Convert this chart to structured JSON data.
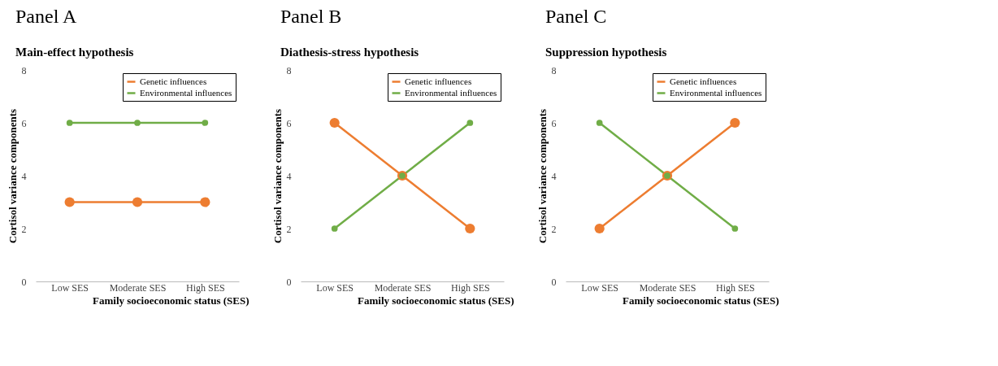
{
  "chart_data": [
    {
      "type": "line",
      "title": "Panel A",
      "subtitle": "Main-effect hypothesis",
      "xlabel": "Family socioeconomic status (SES)",
      "ylabel": "Cortisol variance components",
      "categories": [
        "Low SES",
        "Moderate SES",
        "High SES"
      ],
      "series": [
        {
          "name": "Genetic influences",
          "color": "#ed7d31",
          "values": [
            3,
            3,
            3
          ]
        },
        {
          "name": "Environmental influences",
          "color": "#70ad47",
          "values": [
            6,
            6,
            6
          ]
        }
      ],
      "ylim": [
        0,
        8
      ],
      "yticks": [
        0,
        2,
        4,
        6,
        8
      ],
      "grid": false,
      "legend": "top right",
      "marker": "circle"
    },
    {
      "type": "line",
      "title": "Panel B",
      "subtitle": "Diathesis-stress hypothesis",
      "xlabel": "Family socioeconomic status (SES)",
      "ylabel": "Cortisol variance components",
      "categories": [
        "Low SES",
        "Moderate SES",
        "High SES"
      ],
      "series": [
        {
          "name": "Genetic influences",
          "color": "#ed7d31",
          "values": [
            6,
            4,
            2
          ]
        },
        {
          "name": "Environmental influences",
          "color": "#70ad47",
          "values": [
            2,
            4,
            6
          ]
        }
      ],
      "ylim": [
        0,
        8
      ],
      "yticks": [
        0,
        2,
        4,
        6,
        8
      ],
      "grid": false,
      "legend": "top right",
      "marker": "circle"
    },
    {
      "type": "line",
      "title": "Panel C",
      "subtitle": "Suppression hypothesis",
      "xlabel": "Family socioeconomic status (SES)",
      "ylabel": "Cortisol variance components",
      "categories": [
        "Low SES",
        "Moderate SES",
        "High SES"
      ],
      "series": [
        {
          "name": "Genetic influences",
          "color": "#ed7d31",
          "values": [
            2,
            4,
            6
          ]
        },
        {
          "name": "Environmental influences",
          "color": "#70ad47",
          "values": [
            6,
            4,
            2
          ]
        }
      ],
      "ylim": [
        0,
        8
      ],
      "yticks": [
        0,
        2,
        4,
        6,
        8
      ],
      "grid": false,
      "legend": "top right",
      "marker": "circle"
    }
  ]
}
